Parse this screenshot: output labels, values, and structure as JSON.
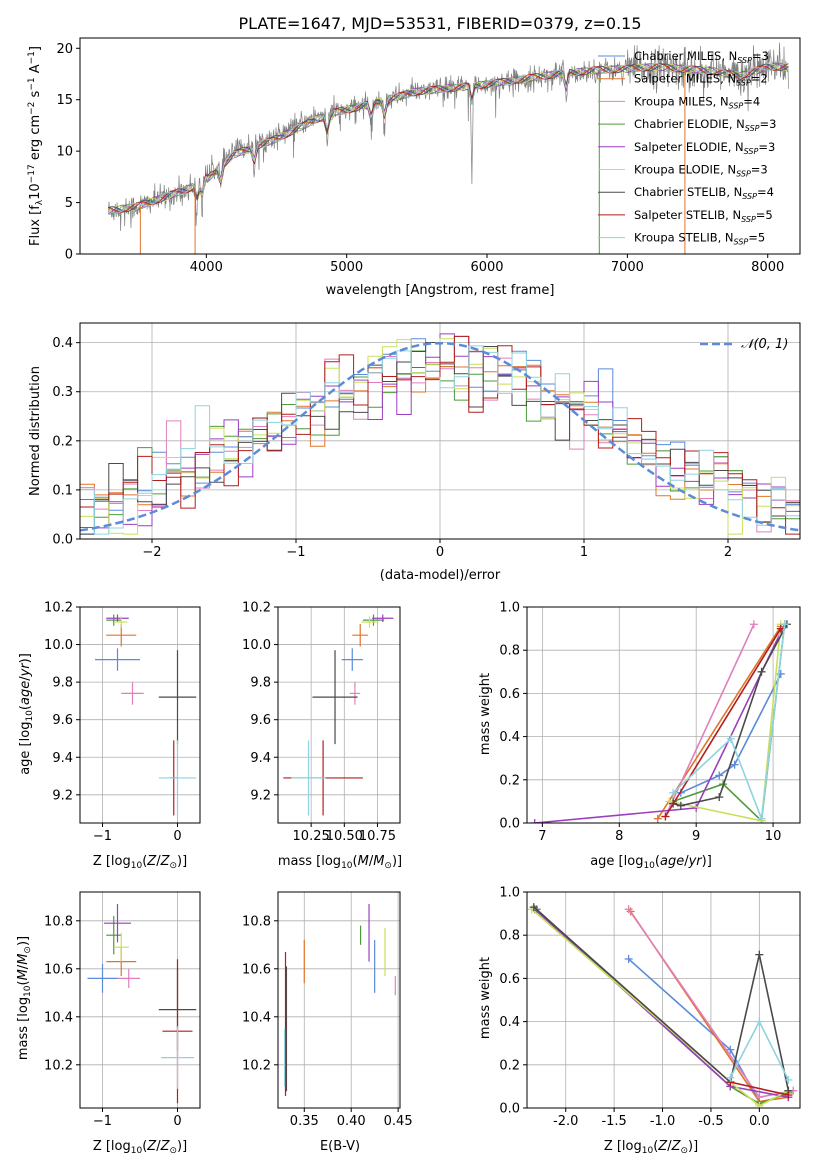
{
  "figure_title": "PLATE=1647, MJD=53531, FIBERID=0379, z=0.15",
  "colors": {
    "Chabrier MILES": "#5b8bd9",
    "Salpeter MILES": "#e0752a",
    "Kroupa MILES": "#e07fbd",
    "Chabrier ELODIE": "#4f9a3d",
    "Salpeter ELODIE": "#9b3fc0",
    "Kroupa ELODIE": "#c9e05a",
    "Chabrier STELIB": "#4a4a4a",
    "Salpeter STELIB": "#b21e1e",
    "Kroupa STELIB": "#8fd3e0",
    "data": "#808080",
    "gauss": "#5b8bd9"
  },
  "legend_labels": [
    "Chabrier MILES, N_SSP=3",
    "Salpeter MILES, N_SSP=2",
    "Kroupa MILES, N_SSP=4",
    "Chabrier ELODIE, N_SSP=3",
    "Salpeter ELODIE, N_SSP=3",
    "Kroupa ELODIE, N_SSP=3",
    "Chabrier STELIB, N_SSP=4",
    "Salpeter STELIB, N_SSP=5",
    "Kroupa STELIB, N_SSP=5"
  ],
  "chart_data": [
    {
      "id": "spectrum",
      "type": "line",
      "xlabel": "wavelength [Angstrom, rest frame]",
      "ylabel": "Flux [f_λ 10^-17 erg cm^-2 s^-1 A^-1]",
      "xlim": [
        3100,
        8230
      ],
      "ylim": [
        0,
        21
      ],
      "xticks": [
        4000,
        5000,
        6000,
        7000,
        8000
      ],
      "yticks": [
        0,
        5,
        10,
        15,
        20
      ],
      "grid": false,
      "legend_position": "top-right",
      "trend": {
        "x": [
          3300,
          3500,
          3700,
          3900,
          4000,
          4200,
          4500,
          4800,
          5000,
          5200,
          5500,
          6000,
          6500,
          6800,
          7000,
          7200,
          7400,
          7600,
          7800,
          8000
        ],
        "y": [
          4.2,
          4.6,
          5.5,
          6.5,
          7.5,
          10.0,
          11.5,
          13.5,
          14.0,
          14.7,
          15.8,
          16.5,
          17.5,
          17.9,
          18.0,
          18.2,
          18.0,
          17.8,
          17.3,
          18.2
        ]
      },
      "absorption_lines": [
        3934,
        3969,
        4102,
        4341,
        4861,
        5175,
        5270,
        5892,
        6563
      ],
      "model_drop_x": [
        3530,
        3920,
        6800,
        7410
      ]
    },
    {
      "id": "residual_hist",
      "type": "step",
      "xlabel": "(data-model)/error",
      "ylabel": "Normed distribution",
      "xlim": [
        -2.5,
        2.5
      ],
      "ylim": [
        0,
        0.44
      ],
      "xticks": [
        -2,
        -1,
        0,
        1,
        2
      ],
      "yticks": [
        0.0,
        0.1,
        0.2,
        0.3,
        0.4
      ],
      "grid": true,
      "legend": "N(0,1)",
      "legend_position": "top-right",
      "bin_width": 0.1,
      "bin_start": -2.5
    },
    {
      "id": "age_vs_Z",
      "type": "errorbar",
      "xlabel": "Z [log10(Z/Z⊙)]",
      "ylabel": "age [log10(age/yr)]",
      "xlim": [
        -1.3,
        0.3
      ],
      "ylim": [
        9.05,
        10.2
      ],
      "xticks": [
        -1,
        0
      ],
      "yticks": [
        9.2,
        9.4,
        9.6,
        9.8,
        10.0,
        10.2
      ],
      "points": [
        {
          "series": "Chabrier MILES",
          "x": -0.8,
          "xerr": 0.3,
          "y": 9.92,
          "yerr": 0.06
        },
        {
          "series": "Salpeter MILES",
          "x": -0.75,
          "xerr": 0.2,
          "y": 10.05,
          "yerr": 0.06
        },
        {
          "series": "Kroupa MILES",
          "x": -0.6,
          "xerr": 0.15,
          "y": 9.74,
          "yerr": 0.06
        },
        {
          "series": "Chabrier ELODIE",
          "x": -0.85,
          "xerr": 0.1,
          "y": 10.13,
          "yerr": 0.03
        },
        {
          "series": "Salpeter ELODIE",
          "x": -0.8,
          "xerr": 0.15,
          "y": 10.14,
          "yerr": 0.02
        },
        {
          "series": "Kroupa ELODIE",
          "x": -0.75,
          "xerr": 0.08,
          "y": 10.12,
          "yerr": 0.03
        },
        {
          "series": "Chabrier STELIB",
          "x": 0.0,
          "xerr": 0.25,
          "y": 9.72,
          "yerr": 0.25
        },
        {
          "series": "Salpeter STELIB",
          "x": -0.05,
          "xerr": 0.05,
          "y": 9.29,
          "yerr": 0.2
        },
        {
          "series": "Kroupa STELIB",
          "x": 0.0,
          "xerr": 0.25,
          "y": 9.29,
          "yerr": 0.2
        }
      ]
    },
    {
      "id": "age_vs_mass",
      "type": "errorbar",
      "xlabel": "mass [log10(M/M⊙)]",
      "ylabel": "",
      "xlim": [
        10.0,
        10.92
      ],
      "ylim": [
        9.05,
        10.2
      ],
      "xticks": [
        10.25,
        10.5,
        10.75
      ],
      "yticks": [
        9.2,
        9.4,
        9.6,
        9.8,
        10.0,
        10.2
      ],
      "points": [
        {
          "series": "Chabrier MILES",
          "x": 10.56,
          "xerr": 0.08,
          "y": 9.92,
          "yerr": 0.06
        },
        {
          "series": "Salpeter MILES",
          "x": 10.62,
          "xerr": 0.06,
          "y": 10.05,
          "yerr": 0.06
        },
        {
          "series": "Kroupa MILES",
          "x": 10.58,
          "xerr": 0.04,
          "y": 9.74,
          "yerr": 0.06
        },
        {
          "series": "Chabrier ELODIE",
          "x": 10.72,
          "xerr": 0.08,
          "y": 10.13,
          "yerr": 0.03
        },
        {
          "series": "Salpeter ELODIE",
          "x": 10.79,
          "xerr": 0.08,
          "y": 10.14,
          "yerr": 0.02
        },
        {
          "series": "Kroupa ELODIE",
          "x": 10.69,
          "xerr": 0.06,
          "y": 10.12,
          "yerr": 0.03
        },
        {
          "series": "Chabrier STELIB",
          "x": 10.43,
          "xerr": 0.17,
          "y": 9.72,
          "yerr": 0.25
        },
        {
          "series": "Salpeter STELIB",
          "x": 10.34,
          "xerr": 0.3,
          "y": 9.29,
          "yerr": 0.2
        },
        {
          "series": "Kroupa STELIB",
          "x": 10.23,
          "xerr": 0.13,
          "y": 9.29,
          "yerr": 0.2
        }
      ]
    },
    {
      "id": "weight_vs_age",
      "type": "line",
      "xlabel": "age [log10(age/yr)]",
      "ylabel": "mass weight",
      "xlim": [
        6.8,
        10.35
      ],
      "ylim": [
        0,
        1
      ],
      "xticks": [
        7,
        8,
        9,
        10
      ],
      "yticks": [
        0.0,
        0.2,
        0.4,
        0.6,
        0.8,
        1.0
      ],
      "grid": true,
      "series": [
        {
          "name": "Chabrier MILES",
          "x": [
            10.1,
            9.5,
            9.3,
            8.8
          ],
          "y": [
            0.69,
            0.27,
            0.22,
            0.14
          ]
        },
        {
          "name": "Salpeter MILES",
          "x": [
            10.1,
            8.5
          ],
          "y": [
            0.91,
            0.02
          ]
        },
        {
          "name": "Kroupa MILES",
          "x": [
            9.75,
            8.6
          ],
          "y": [
            0.92,
            0.03
          ]
        },
        {
          "name": "Chabrier ELODIE",
          "x": [
            10.15,
            9.85,
            9.35,
            8.7
          ],
          "y": [
            0.92,
            0.01,
            0.18,
            0.1
          ]
        },
        {
          "name": "Salpeter ELODIE",
          "x": [
            10.15,
            9.0,
            6.9
          ],
          "y": [
            0.92,
            0.07,
            0.0
          ]
        },
        {
          "name": "Kroupa ELODIE",
          "x": [
            10.1,
            9.85,
            8.65
          ],
          "y": [
            0.92,
            0.01,
            0.1
          ]
        },
        {
          "name": "Chabrier STELIB",
          "x": [
            10.18,
            9.85,
            9.3,
            8.8,
            8.7
          ],
          "y": [
            0.92,
            0.7,
            0.12,
            0.08,
            0.09
          ]
        },
        {
          "name": "Salpeter STELIB",
          "x": [
            10.1,
            8.6
          ],
          "y": [
            0.9,
            0.03
          ]
        },
        {
          "name": "Kroupa STELIB",
          "x": [
            10.15,
            9.85,
            9.45,
            8.7
          ],
          "y": [
            0.92,
            0.02,
            0.39,
            0.14
          ]
        }
      ]
    },
    {
      "id": "mass_vs_Z",
      "type": "errorbar",
      "xlabel": "Z [log10(Z/Z⊙)]",
      "ylabel": "mass [log10(M/M⊙)]",
      "xlim": [
        -1.3,
        0.3
      ],
      "ylim": [
        10.02,
        10.92
      ],
      "xticks": [
        -1,
        0
      ],
      "yticks": [
        10.2,
        10.4,
        10.6,
        10.8
      ],
      "points": [
        {
          "series": "Chabrier MILES",
          "x": -1.0,
          "xerr": 0.2,
          "y": 10.56,
          "yerr": 0.06
        },
        {
          "series": "Salpeter MILES",
          "x": -0.75,
          "xerr": 0.2,
          "y": 10.63,
          "yerr": 0.06
        },
        {
          "series": "Kroupa MILES",
          "x": -0.65,
          "xerr": 0.15,
          "y": 10.56,
          "yerr": 0.04
        },
        {
          "series": "Chabrier ELODIE",
          "x": -0.85,
          "xerr": 0.1,
          "y": 10.74,
          "yerr": 0.08
        },
        {
          "series": "Salpeter ELODIE",
          "x": -0.8,
          "xerr": 0.18,
          "y": 10.79,
          "yerr": 0.08
        },
        {
          "series": "Kroupa ELODIE",
          "x": -0.75,
          "xerr": 0.1,
          "y": 10.69,
          "yerr": 0.06
        },
        {
          "series": "Chabrier STELIB",
          "x": 0.0,
          "xerr": 0.25,
          "y": 10.43,
          "yerr": 0.17
        },
        {
          "series": "Salpeter STELIB",
          "x": 0.0,
          "xerr": 0.2,
          "y": 10.34,
          "yerr": 0.3
        },
        {
          "series": "Kroupa STELIB",
          "x": 0.0,
          "xerr": 0.22,
          "y": 10.23,
          "yerr": 0.13
        }
      ]
    },
    {
      "id": "mass_vs_EBV",
      "type": "errorbar",
      "xlabel": "E(B-V)",
      "ylabel": "",
      "xlim": [
        0.322,
        0.452
      ],
      "ylim": [
        10.02,
        10.92
      ],
      "xticks": [
        0.35,
        0.4,
        0.45
      ],
      "yticks": [
        10.2,
        10.4,
        10.6,
        10.8
      ],
      "points": [
        {
          "series": "Chabrier MILES",
          "x": 0.425,
          "xerr": 0,
          "y": 10.61,
          "yerr": 0.11
        },
        {
          "series": "Salpeter MILES",
          "x": 0.35,
          "xerr": 0,
          "y": 10.63,
          "yerr": 0.09
        },
        {
          "series": "Kroupa MILES",
          "x": 0.447,
          "xerr": 0,
          "y": 10.53,
          "yerr": 0.04
        },
        {
          "series": "Chabrier ELODIE",
          "x": 0.41,
          "xerr": 0,
          "y": 10.74,
          "yerr": 0.04
        },
        {
          "series": "Salpeter ELODIE",
          "x": 0.419,
          "xerr": 0,
          "y": 10.75,
          "yerr": 0.12
        },
        {
          "series": "Kroupa ELODIE",
          "x": 0.436,
          "xerr": 0,
          "y": 10.67,
          "yerr": 0.1
        },
        {
          "series": "Chabrier STELIB",
          "x": 0.331,
          "xerr": 0,
          "y": 10.35,
          "yerr": 0.26
        },
        {
          "series": "Salpeter STELIB",
          "x": 0.33,
          "xerr": 0,
          "y": 10.37,
          "yerr": 0.3
        },
        {
          "series": "Kroupa STELIB",
          "x": 0.329,
          "xerr": 0,
          "y": 10.23,
          "yerr": 0.12
        }
      ]
    },
    {
      "id": "weight_vs_Z",
      "type": "line",
      "xlabel": "Z [log10(Z/Z⊙)]",
      "ylabel": "mass weight",
      "xlim": [
        -2.4,
        0.42
      ],
      "ylim": [
        0,
        1
      ],
      "xticks": [
        -2.0,
        -1.5,
        -1.0,
        -0.5,
        0.0
      ],
      "yticks": [
        0.0,
        0.2,
        0.4,
        0.6,
        0.8,
        1.0
      ],
      "grid": true,
      "series": [
        {
          "name": "Chabrier MILES",
          "x": [
            -1.35,
            -0.3,
            0.0
          ],
          "y": [
            0.69,
            0.27,
            0.03
          ]
        },
        {
          "name": "Salpeter MILES",
          "x": [
            -1.33,
            0.0,
            0.3
          ],
          "y": [
            0.91,
            0.03,
            0.05
          ]
        },
        {
          "name": "Kroupa MILES",
          "x": [
            -1.35,
            0.0,
            0.35
          ],
          "y": [
            0.92,
            0.05,
            0.08
          ]
        },
        {
          "name": "Chabrier ELODIE",
          "x": [
            -2.3,
            -0.3,
            0.0,
            0.3
          ],
          "y": [
            0.92,
            0.1,
            0.02,
            0.07
          ]
        },
        {
          "name": "Salpeter ELODIE",
          "x": [
            -2.32,
            -0.3,
            0.3
          ],
          "y": [
            0.92,
            0.1,
            0.05
          ]
        },
        {
          "name": "Kroupa ELODIE",
          "x": [
            -2.35,
            -0.3,
            0.0,
            0.3
          ],
          "y": [
            0.92,
            0.12,
            0.01,
            0.08
          ]
        },
        {
          "name": "Chabrier STELIB",
          "x": [
            -2.33,
            -0.3,
            0.0,
            0.3
          ],
          "y": [
            0.93,
            0.12,
            0.71,
            0.08
          ]
        },
        {
          "name": "Salpeter STELIB",
          "x": [
            -0.3,
            0.3
          ],
          "y": [
            0.12,
            0.06
          ]
        },
        {
          "name": "Kroupa STELIB",
          "x": [
            -0.3,
            0.0,
            0.3
          ],
          "y": [
            0.14,
            0.4,
            0.13
          ]
        }
      ]
    }
  ]
}
